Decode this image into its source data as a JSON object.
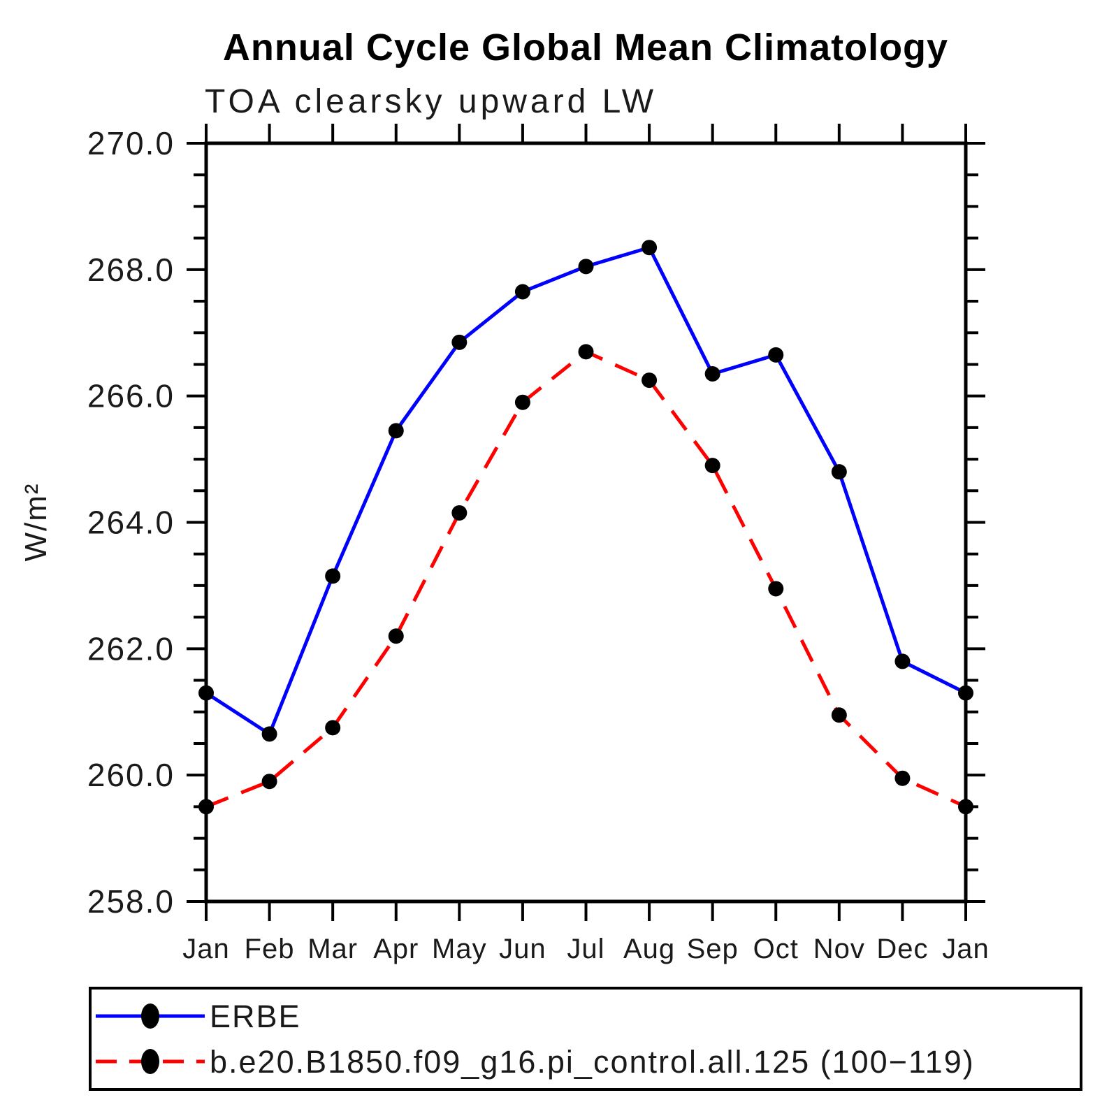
{
  "chart_data": {
    "type": "line",
    "title": "Annual Cycle Global Mean Climatology",
    "subtitle": "TOA clearsky upward LW",
    "ylabel": "W/m²",
    "xlabel": "",
    "categories": [
      "Jan",
      "Feb",
      "Mar",
      "Apr",
      "May",
      "Jun",
      "Jul",
      "Aug",
      "Sep",
      "Oct",
      "Nov",
      "Dec",
      "Jan"
    ],
    "series": [
      {
        "id": "erbe",
        "name": "ERBE",
        "color": "#0000ff",
        "line_style": "solid",
        "marker": "filled-circle",
        "marker_color": "#000000",
        "values": [
          261.3,
          260.65,
          263.15,
          265.45,
          266.85,
          267.65,
          268.05,
          268.35,
          266.35,
          266.65,
          264.8,
          261.8,
          261.3
        ]
      },
      {
        "id": "pi-control",
        "name": "b.e20.B1850.f09_g16.pi_control.all.125 (100−119)",
        "color": "#ff0000",
        "line_style": "dashed",
        "marker": "filled-circle",
        "marker_color": "#000000",
        "values": [
          259.5,
          259.9,
          260.75,
          262.2,
          264.15,
          265.9,
          266.7,
          266.25,
          264.9,
          262.95,
          260.95,
          259.95,
          259.5
        ]
      }
    ],
    "ylim": [
      258.0,
      270.0
    ],
    "ytick_major": 2.0,
    "ytick_minor": 0.5,
    "ytick_labels": [
      "258.0",
      "260.0",
      "262.0",
      "264.0",
      "266.0",
      "268.0",
      "270.0"
    ],
    "grid": false,
    "legend_position": "bottom-box",
    "axis_color": "#000000",
    "background_color": "#ffffff"
  }
}
